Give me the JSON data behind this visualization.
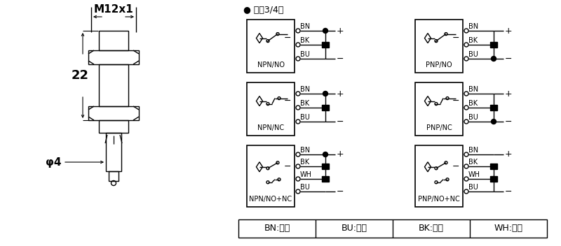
{
  "bg_color": "#ffffff",
  "line_color": "#000000",
  "title_text": "● 直浑3/4线",
  "m12_label": "M12x1",
  "dim_22": "22",
  "dim_phi4": "φ4",
  "legend_items": [
    "BN:棕色",
    "BU:兰色",
    "BK:黑色",
    "WH:白色"
  ],
  "circuit_rows": [
    {
      "left_label": "NPN/NO",
      "right_label": "PNP/NO",
      "ctype": "NO",
      "n_wires": 3
    },
    {
      "left_label": "NPN/NC",
      "right_label": "PNP/NC",
      "ctype": "NC",
      "n_wires": 3
    },
    {
      "left_label": "NPN/NO+NC",
      "right_label": "PNP/NO+NC",
      "ctype": "NO+NC",
      "n_wires": 4
    }
  ]
}
